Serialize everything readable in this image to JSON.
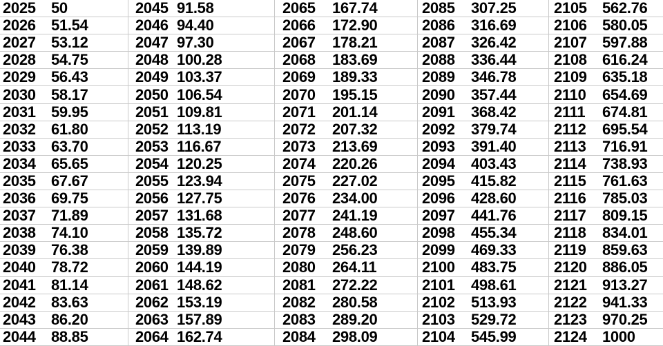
{
  "colors": {
    "background": "#ffffff",
    "gridline": "#c9c9c9",
    "text": "#000000"
  },
  "table": {
    "columns": [
      {
        "rows": [
          {
            "year": "2025",
            "value": "50"
          },
          {
            "year": "2026",
            "value": "51.54"
          },
          {
            "year": "2027",
            "value": "53.12"
          },
          {
            "year": "2028",
            "value": "54.75"
          },
          {
            "year": "2029",
            "value": "56.43"
          },
          {
            "year": "2030",
            "value": "58.17"
          },
          {
            "year": "2031",
            "value": "59.95"
          },
          {
            "year": "2032",
            "value": "61.80"
          },
          {
            "year": "2033",
            "value": "63.70"
          },
          {
            "year": "2034",
            "value": "65.65"
          },
          {
            "year": "2035",
            "value": "67.67"
          },
          {
            "year": "2036",
            "value": "69.75"
          },
          {
            "year": "2037",
            "value": "71.89"
          },
          {
            "year": "2038",
            "value": "74.10"
          },
          {
            "year": "2039",
            "value": "76.38"
          },
          {
            "year": "2040",
            "value": "78.72"
          },
          {
            "year": "2041",
            "value": "81.14"
          },
          {
            "year": "2042",
            "value": "83.63"
          },
          {
            "year": "2043",
            "value": "86.20"
          },
          {
            "year": "2044",
            "value": "88.85"
          }
        ]
      },
      {
        "rows": [
          {
            "year": "2045",
            "value": "91.58"
          },
          {
            "year": "2046",
            "value": "94.40"
          },
          {
            "year": "2047",
            "value": "97.30"
          },
          {
            "year": "2048",
            "value": "100.28"
          },
          {
            "year": "2049",
            "value": "103.37"
          },
          {
            "year": "2050",
            "value": "106.54"
          },
          {
            "year": "2051",
            "value": "109.81"
          },
          {
            "year": "2052",
            "value": "113.19"
          },
          {
            "year": "2053",
            "value": "116.67"
          },
          {
            "year": "2054",
            "value": "120.25"
          },
          {
            "year": "2055",
            "value": "123.94"
          },
          {
            "year": "2056",
            "value": "127.75"
          },
          {
            "year": "2057",
            "value": "131.68"
          },
          {
            "year": "2058",
            "value": "135.72"
          },
          {
            "year": "2059",
            "value": "139.89"
          },
          {
            "year": "2060",
            "value": "144.19"
          },
          {
            "year": "2061",
            "value": "148.62"
          },
          {
            "year": "2062",
            "value": "153.19"
          },
          {
            "year": "2063",
            "value": "157.89"
          },
          {
            "year": "2064",
            "value": "162.74"
          }
        ]
      },
      {
        "rows": [
          {
            "year": "2065",
            "value": "167.74"
          },
          {
            "year": "2066",
            "value": "172.90"
          },
          {
            "year": "2067",
            "value": "178.21"
          },
          {
            "year": "2068",
            "value": "183.69"
          },
          {
            "year": "2069",
            "value": "189.33"
          },
          {
            "year": "2070",
            "value": "195.15"
          },
          {
            "year": "2071",
            "value": "201.14"
          },
          {
            "year": "2072",
            "value": "207.32"
          },
          {
            "year": "2073",
            "value": "213.69"
          },
          {
            "year": "2074",
            "value": "220.26"
          },
          {
            "year": "2075",
            "value": "227.02"
          },
          {
            "year": "2076",
            "value": "234.00"
          },
          {
            "year": "2077",
            "value": "241.19"
          },
          {
            "year": "2078",
            "value": "248.60"
          },
          {
            "year": "2079",
            "value": "256.23"
          },
          {
            "year": "2080",
            "value": "264.11"
          },
          {
            "year": "2081",
            "value": "272.22"
          },
          {
            "year": "2082",
            "value": "280.58"
          },
          {
            "year": "2083",
            "value": "289.20"
          },
          {
            "year": "2084",
            "value": "298.09"
          }
        ]
      },
      {
        "rows": [
          {
            "year": "2085",
            "value": "307.25"
          },
          {
            "year": "2086",
            "value": "316.69"
          },
          {
            "year": "2087",
            "value": "326.42"
          },
          {
            "year": "2088",
            "value": "336.44"
          },
          {
            "year": "2089",
            "value": "346.78"
          },
          {
            "year": "2090",
            "value": "357.44"
          },
          {
            "year": "2091",
            "value": "368.42"
          },
          {
            "year": "2092",
            "value": "379.74"
          },
          {
            "year": "2093",
            "value": "391.40"
          },
          {
            "year": "2094",
            "value": "403.43"
          },
          {
            "year": "2095",
            "value": "415.82"
          },
          {
            "year": "2096",
            "value": "428.60"
          },
          {
            "year": "2097",
            "value": "441.76"
          },
          {
            "year": "2098",
            "value": "455.34"
          },
          {
            "year": "2099",
            "value": "469.33"
          },
          {
            "year": "2100",
            "value": "483.75"
          },
          {
            "year": "2101",
            "value": "498.61"
          },
          {
            "year": "2102",
            "value": "513.93"
          },
          {
            "year": "2103",
            "value": "529.72"
          },
          {
            "year": "2104",
            "value": "545.99"
          }
        ]
      },
      {
        "rows": [
          {
            "year": "2105",
            "value": "562.76"
          },
          {
            "year": "2106",
            "value": "580.05"
          },
          {
            "year": "2107",
            "value": "597.88"
          },
          {
            "year": "2108",
            "value": "616.24"
          },
          {
            "year": "2109",
            "value": "635.18"
          },
          {
            "year": "2110",
            "value": "654.69"
          },
          {
            "year": "2111",
            "value": "674.81"
          },
          {
            "year": "2112",
            "value": "695.54"
          },
          {
            "year": "2113",
            "value": "716.91"
          },
          {
            "year": "2114",
            "value": "738.93"
          },
          {
            "year": "2115",
            "value": "761.63"
          },
          {
            "year": "2116",
            "value": "785.03"
          },
          {
            "year": "2117",
            "value": "809.15"
          },
          {
            "year": "2118",
            "value": "834.01"
          },
          {
            "year": "2119",
            "value": "859.63"
          },
          {
            "year": "2120",
            "value": "886.05"
          },
          {
            "year": "2121",
            "value": "913.27"
          },
          {
            "year": "2122",
            "value": "941.33"
          },
          {
            "year": "2123",
            "value": "970.25"
          },
          {
            "year": "2124",
            "value": "1000"
          }
        ]
      }
    ]
  }
}
